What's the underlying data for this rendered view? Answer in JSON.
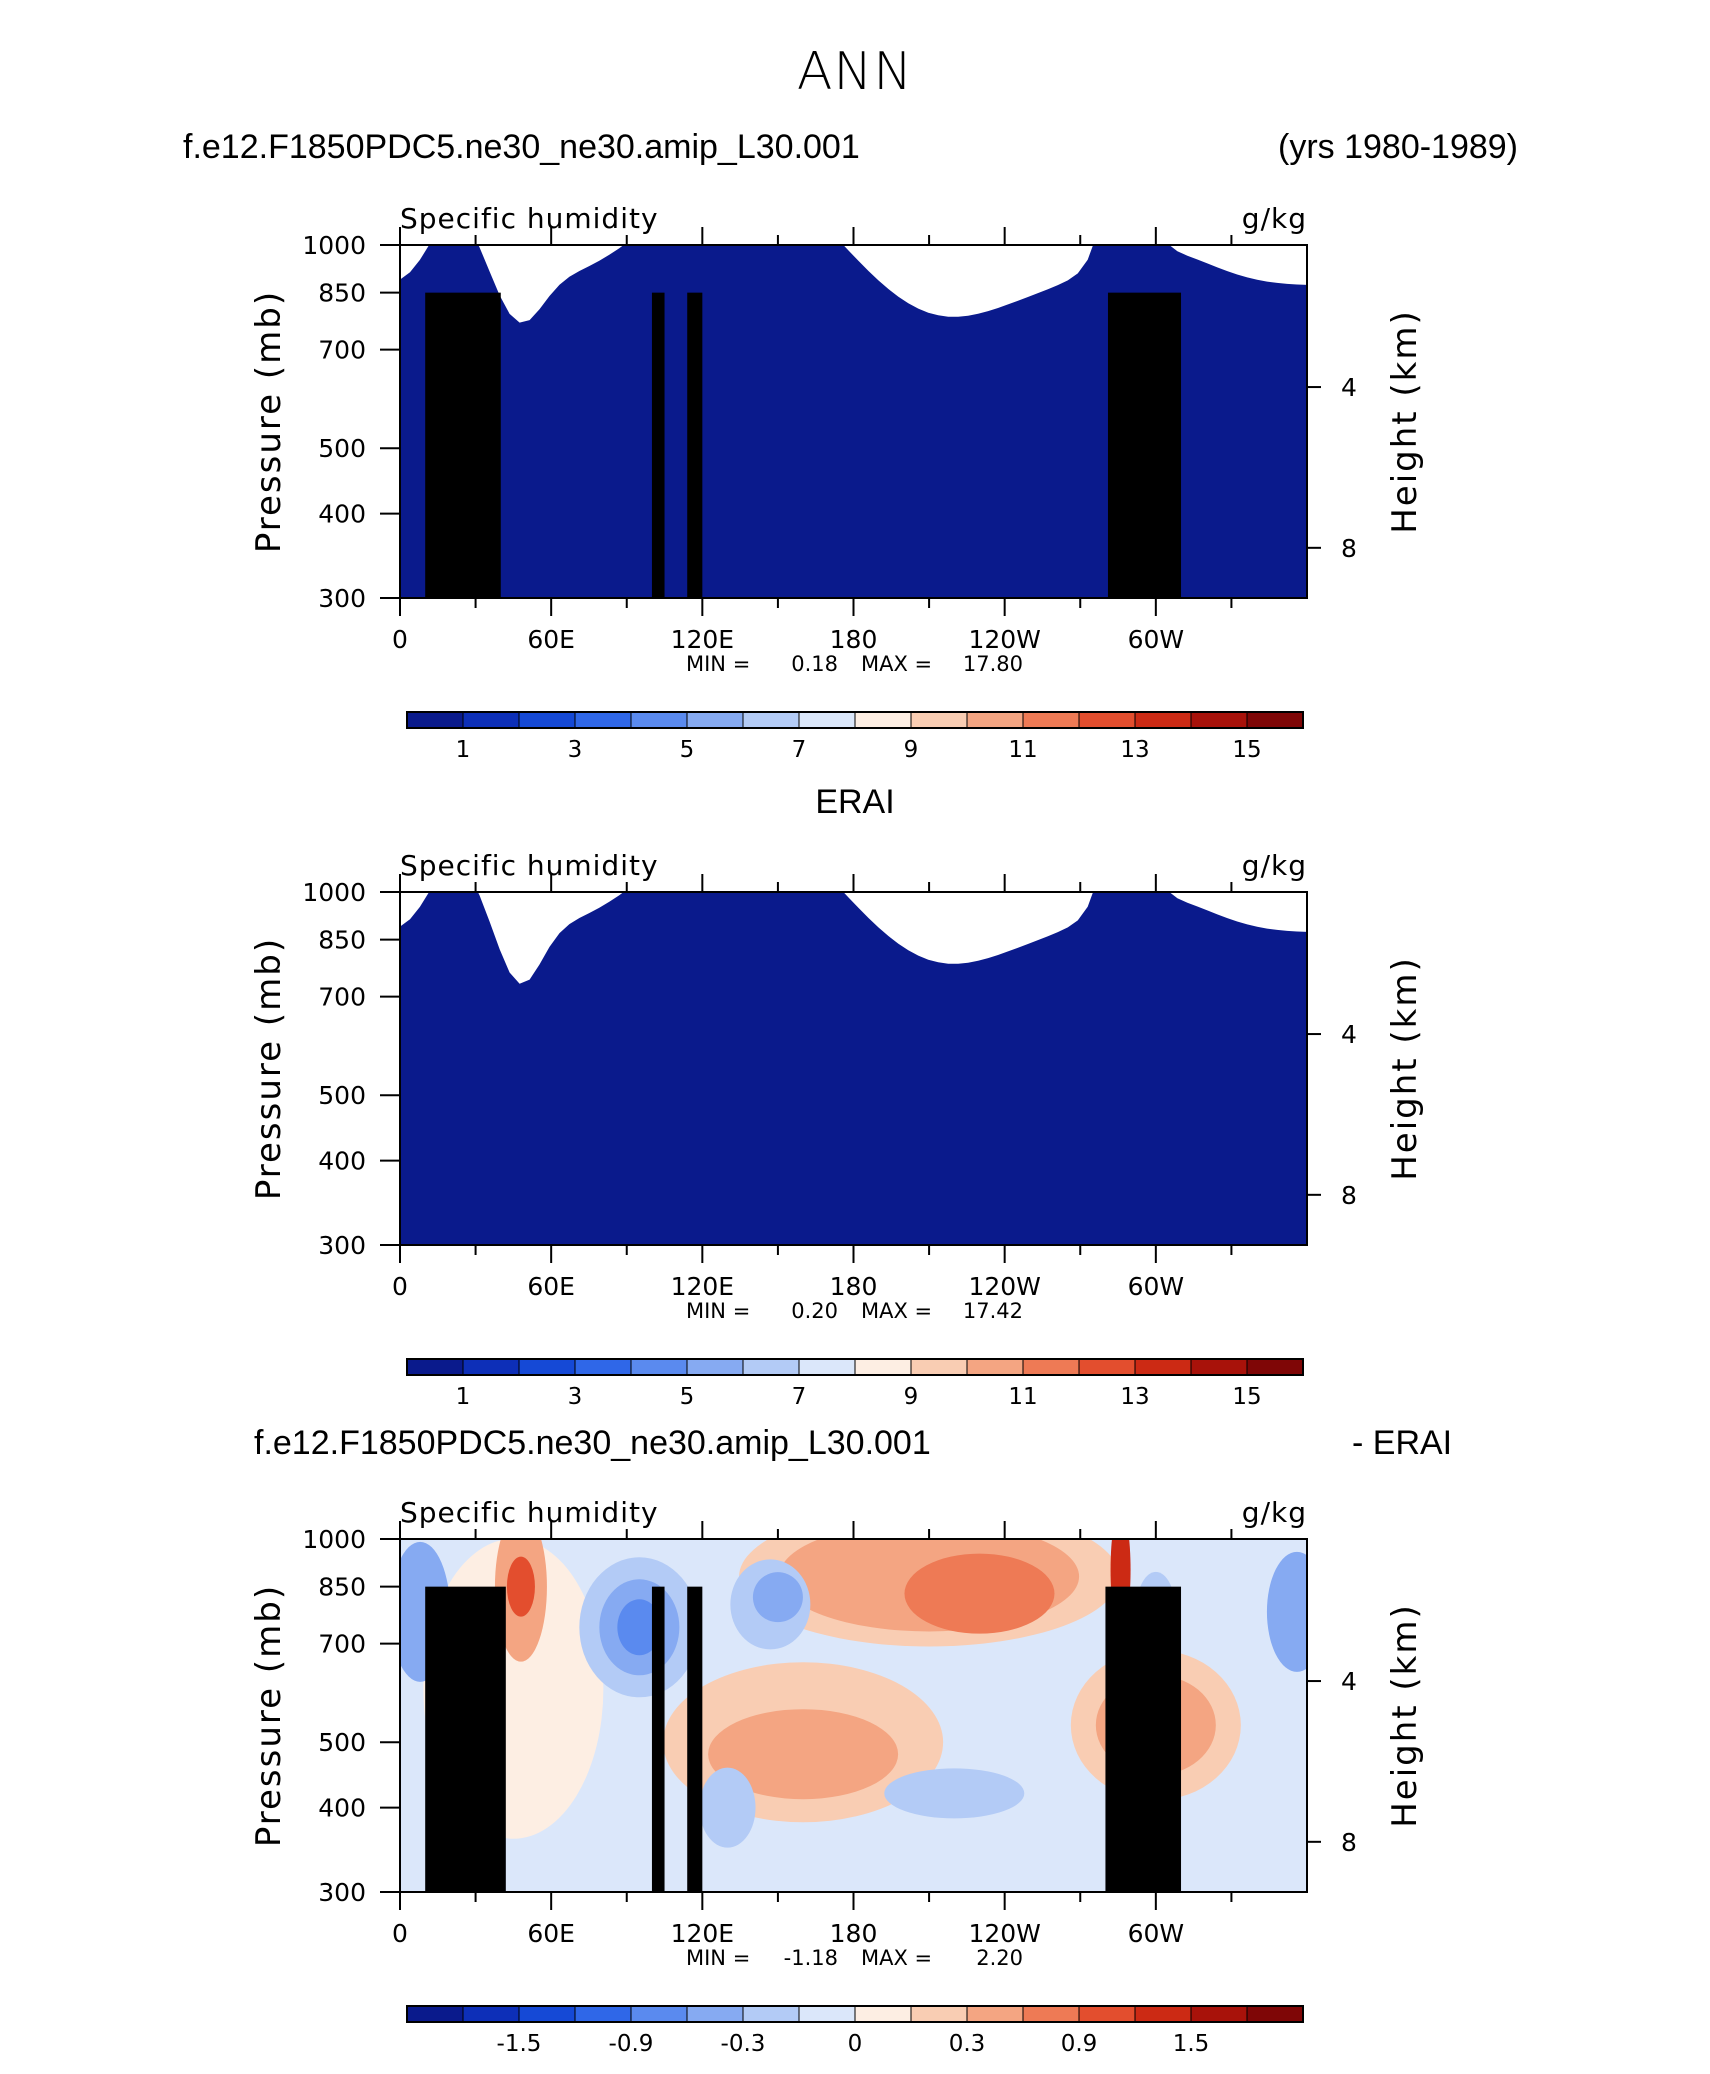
{
  "header": {
    "season": "ANN",
    "case_name": "f.e12.F1850PDC5.ne30_ne30.amip_L30.001",
    "years": "(yrs 1980-1989)",
    "obs_name": "ERAI",
    "diff_case_name": "f.e12.F1850PDC5.ne30_ne30.amip_L30.001",
    "diff_suffix": "- ERAI"
  },
  "chart_data": [
    {
      "type": "heatmap",
      "variable": "Specific humidity",
      "units": "g/kg",
      "ylabel": "Pressure (mb)",
      "ylabel_right": "Height (km)",
      "y_ticks": [
        "300",
        "400",
        "500",
        "700",
        "850",
        "1000"
      ],
      "y_right_ticks": [
        "8",
        "4"
      ],
      "x_ticks": [
        "0",
        "60E",
        "120E",
        "180",
        "120W",
        "60W"
      ],
      "xlim": [
        0,
        360
      ],
      "ylim": [
        1000,
        300
      ],
      "stats": {
        "min_label": "MIN =",
        "min": "0.18",
        "max_label": "MAX =",
        "max": "17.80"
      },
      "colorbar_labels": [
        "1",
        "3",
        "5",
        "7",
        "9",
        "11",
        "13",
        "15"
      ],
      "colors": [
        "#0a1a8c",
        "#0d2fb8",
        "#1549d6",
        "#2f67e8",
        "#5a8aef",
        "#86aaf2",
        "#b3cbf6",
        "#dbe7fa",
        "#fdeee3",
        "#f9cdb3",
        "#f4a582",
        "#ee7a55",
        "#e34e2e",
        "#cc2a14",
        "#a8120a",
        "#7f0606"
      ],
      "surface_blocks": [
        [
          10,
          850,
          40
        ],
        [
          28,
          760,
          38
        ],
        [
          100,
          850,
          105
        ],
        [
          114,
          850,
          120
        ],
        [
          281,
          850,
          310
        ]
      ]
    },
    {
      "type": "heatmap",
      "variable": "Specific humidity",
      "units": "g/kg",
      "ylabel": "Pressure (mb)",
      "ylabel_right": "Height (km)",
      "y_ticks": [
        "300",
        "400",
        "500",
        "700",
        "850",
        "1000"
      ],
      "y_right_ticks": [
        "8",
        "4"
      ],
      "x_ticks": [
        "0",
        "60E",
        "120E",
        "180",
        "120W",
        "60W"
      ],
      "xlim": [
        0,
        360
      ],
      "ylim": [
        1000,
        300
      ],
      "stats": {
        "min_label": "MIN =",
        "min": "0.20",
        "max_label": "MAX =",
        "max": "17.42"
      },
      "colorbar_labels": [
        "1",
        "3",
        "5",
        "7",
        "9",
        "11",
        "13",
        "15"
      ],
      "colors": [
        "#0a1a8c",
        "#0d2fb8",
        "#1549d6",
        "#2f67e8",
        "#5a8aef",
        "#86aaf2",
        "#b3cbf6",
        "#dbe7fa",
        "#fdeee3",
        "#f9cdb3",
        "#f4a582",
        "#ee7a55",
        "#e34e2e",
        "#cc2a14",
        "#a8120a",
        "#7f0606"
      ],
      "surface_blocks": []
    },
    {
      "type": "heatmap",
      "variable": "Specific humidity",
      "units": "g/kg",
      "ylabel": "Pressure (mb)",
      "ylabel_right": "Height (km)",
      "y_ticks": [
        "300",
        "400",
        "500",
        "700",
        "850",
        "1000"
      ],
      "y_right_ticks": [
        "8",
        "4"
      ],
      "x_ticks": [
        "0",
        "60E",
        "120E",
        "180",
        "120W",
        "60W"
      ],
      "xlim": [
        0,
        360
      ],
      "ylim": [
        1000,
        300
      ],
      "stats": {
        "min_label": "MIN =",
        "min": "-1.18",
        "max_label": "MAX =",
        "max": "2.20"
      },
      "colorbar_labels": [
        "-1.5",
        "-0.9",
        "-0.3",
        "0",
        "0.3",
        "0.9",
        "1.5"
      ],
      "colors": [
        "#0a1a8c",
        "#0d2fb8",
        "#1549d6",
        "#2f67e8",
        "#5a8aef",
        "#86aaf2",
        "#b3cbf6",
        "#dbe7fa",
        "#fdeee3",
        "#f9cdb3",
        "#f4a582",
        "#ee7a55",
        "#e34e2e",
        "#cc2a14",
        "#a8120a",
        "#7f0606"
      ],
      "surface_blocks": [
        [
          10,
          850,
          42
        ],
        [
          28,
          760,
          38
        ],
        [
          100,
          850,
          105
        ],
        [
          114,
          850,
          120
        ],
        [
          280,
          850,
          310
        ]
      ]
    }
  ]
}
